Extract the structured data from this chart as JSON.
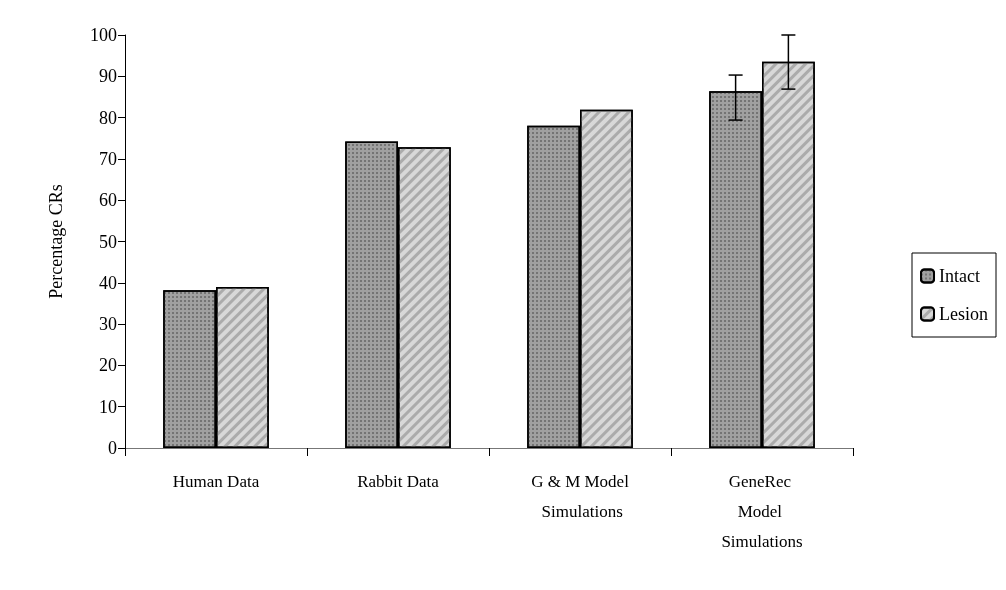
{
  "chart_data": {
    "type": "bar",
    "ylabel": "Percentage CRs",
    "categories": [
      "Human Data",
      "Rabbit Data",
      "G & M Model Simulations",
      "GeneRec Model Simulations"
    ],
    "series": [
      {
        "name": "Intact",
        "color": "#a0a0a0",
        "values": [
          38.2,
          74.2,
          78.0,
          86.4
        ],
        "errors": [
          null,
          null,
          null,
          [
            79.4,
            90.3
          ]
        ]
      },
      {
        "name": "Lesion",
        "color": "#d8d8d8",
        "values": [
          39.0,
          72.8,
          81.9,
          93.5
        ],
        "errors": [
          null,
          null,
          null,
          [
            86.9,
            100
          ]
        ]
      }
    ],
    "ylim": [
      0,
      100
    ],
    "yticks": [
      0,
      10,
      20,
      30,
      40,
      50,
      60,
      70,
      80,
      90,
      100
    ],
    "grid": false,
    "legend": "right"
  }
}
